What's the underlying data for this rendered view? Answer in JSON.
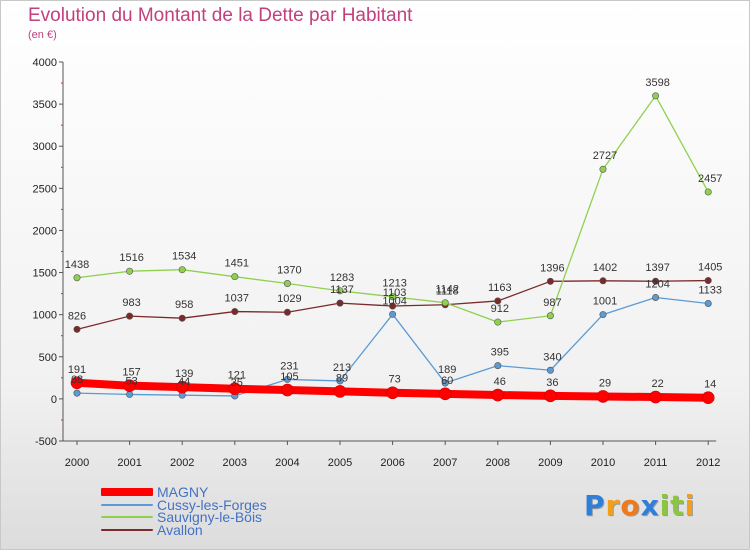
{
  "chart_data": {
    "type": "line",
    "title": "Evolution du Montant de la Dette par Habitant",
    "subtitle": "(en €)",
    "x": [
      "2000",
      "2001",
      "2002",
      "2003",
      "2004",
      "2005",
      "2006",
      "2007",
      "2008",
      "2009",
      "2010",
      "2011",
      "2012"
    ],
    "ylim": [
      -500,
      4000
    ],
    "yticks": [
      "-500",
      "0",
      "500",
      "1000",
      "1500",
      "2000",
      "2500",
      "3000",
      "3500",
      "4000"
    ],
    "grid": false,
    "legend_position": "bottom-left",
    "series": [
      {
        "name": "MAGNY",
        "color": "#ff0000",
        "values": [
          191,
          157,
          139,
          121,
          105,
          89,
          73,
          60,
          46,
          36,
          29,
          22,
          14
        ],
        "labels": [
          "191",
          "157",
          "139",
          "121",
          "105",
          "89",
          "73",
          "60",
          "46",
          "36",
          "29",
          "22",
          "14"
        ]
      },
      {
        "name": "Cussy-les-Forges",
        "color": "#5b9bd5",
        "values": [
          68,
          53,
          44,
          35,
          231,
          213,
          1004,
          189,
          395,
          340,
          1001,
          1204,
          1133
        ],
        "labels": [
          "68",
          "53",
          "44",
          "35",
          "231",
          "213",
          "1004",
          "189",
          "395",
          "340",
          "1001",
          "1204",
          "1133"
        ]
      },
      {
        "name": "Sauvigny-le-Bois",
        "color": "#8fd14f",
        "values": [
          1438,
          1516,
          1534,
          1451,
          1370,
          1283,
          1213,
          1142,
          912,
          987,
          2727,
          3598,
          2457
        ],
        "labels": [
          "1438",
          "1516",
          "1534",
          "1451",
          "1370",
          "1283",
          "1213",
          "1142",
          "912",
          "987",
          "2727",
          "3598",
          "2457"
        ]
      },
      {
        "name": "Avallon",
        "color": "#7b2a2a",
        "values": [
          826,
          983,
          958,
          1037,
          1029,
          1137,
          1103,
          1118,
          1163,
          1396,
          1402,
          1397,
          1405
        ],
        "labels": [
          "826",
          "983",
          "958",
          "1037",
          "1029",
          "1137",
          "1103",
          "1118",
          "1163",
          "1396",
          "1402",
          "1397",
          "1405"
        ]
      }
    ]
  },
  "legend": {
    "items": [
      {
        "label": "MAGNY",
        "color": "#ff0000"
      },
      {
        "label": "Cussy-les-Forges",
        "color": "#5b9bd5"
      },
      {
        "label": "Sauvigny-le-Bois",
        "color": "#8fd14f"
      },
      {
        "label": "Avallon",
        "color": "#7b2a2a"
      }
    ]
  },
  "logo": {
    "text": "Proxiti",
    "letters": [
      {
        "ch": "P",
        "color": "#2f7fd8"
      },
      {
        "ch": "r",
        "color": "#f2a01b"
      },
      {
        "ch": "o",
        "color": "#f07a1a"
      },
      {
        "ch": "x",
        "color": "#2f7fd8"
      },
      {
        "ch": "i",
        "color": "#8cc63f"
      },
      {
        "ch": "t",
        "color": "#8cc63f"
      },
      {
        "ch": "i",
        "color": "#f2a01b"
      }
    ]
  }
}
